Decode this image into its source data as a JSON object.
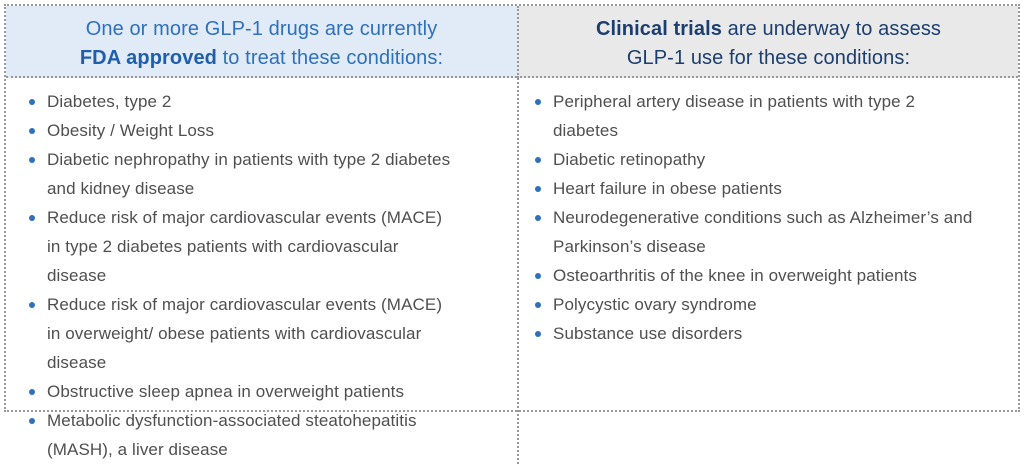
{
  "colors": {
    "accent-blue": "#2e70b9",
    "bold-blue": "#1f5dad",
    "navy": "#1c3e6e",
    "header-left-bg": "#e1ebf8",
    "header-right-bg": "#e9e9ea",
    "body-text": "#4f4f51",
    "border": "#989898",
    "page-bg": "#ffffff"
  },
  "table": {
    "columns": [
      {
        "id": "fda-approved",
        "header": {
          "line1": "One or more GLP-1 drugs are currently",
          "line2_bold": "FDA approved",
          "line2_rest": " to treat these conditions:"
        },
        "items": [
          "Diabetes, type 2",
          "Obesity / Weight Loss",
          "Diabetic nephropathy in patients with type 2 diabetes and kidney disease",
          "Reduce risk of major cardiovascular events (MACE) in type 2 diabetes patients with cardiovascular disease",
          "Reduce risk of major cardiovascular events (MACE) in overweight/ obese patients with cardiovascular disease",
          "Obstructive sleep apnea in overweight patients",
          "Metabolic dysfunction-associated steatohepatitis (MASH), a liver disease"
        ]
      },
      {
        "id": "clinical-trials",
        "header": {
          "line1_bold": "Clinical trials",
          "line1_rest": " are underway to assess",
          "line2": "GLP-1 use for these conditions:"
        },
        "items": [
          "Peripheral artery disease in patients with type 2 diabetes",
          "Diabetic retinopathy",
          "Heart failure in obese patients",
          "Neurodegenerative conditions such as Alzheimer’s and Parkinson’s disease",
          "Osteoarthritis of the knee in overweight patients",
          "Polycystic ovary syndrome",
          "Substance use disorders"
        ]
      }
    ]
  }
}
